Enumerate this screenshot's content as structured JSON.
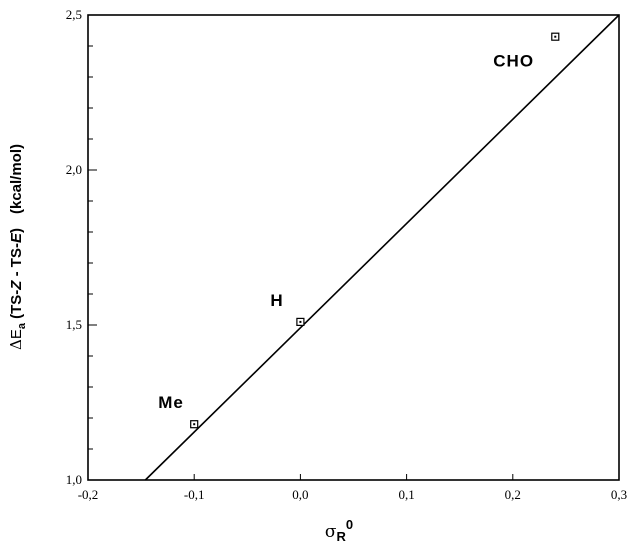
{
  "chart_data": {
    "type": "scatter",
    "title": "",
    "xlabel": {
      "main": "σ",
      "sub": "R",
      "sup": "0"
    },
    "ylabel": {
      "delta": "Δ",
      "e": "E",
      "sub": "a",
      "p1": " (TS-",
      "z": "Z",
      "p2": " - TS-",
      "e2": "E",
      "p3": ")",
      "unit": "(kcal/mol)"
    },
    "xlim": [
      -0.2,
      0.3
    ],
    "ylim": [
      1.0,
      2.5
    ],
    "xticks": [
      {
        "value": -0.2,
        "label": "-0,2"
      },
      {
        "value": -0.1,
        "label": "-0,1"
      },
      {
        "value": 0.0,
        "label": "0,0"
      },
      {
        "value": 0.1,
        "label": "0,1"
      },
      {
        "value": 0.2,
        "label": "0,2"
      },
      {
        "value": 0.3,
        "label": "0,3"
      }
    ],
    "yticks": [
      {
        "value": 1.0,
        "label": "1,0"
      },
      {
        "value": 1.5,
        "label": "1,5"
      },
      {
        "value": 2.0,
        "label": "2,0"
      },
      {
        "value": 2.5,
        "label": "2,5"
      }
    ],
    "y_minor_step": 0.1,
    "grid": false,
    "points": [
      {
        "label": "Me",
        "x": -0.1,
        "y": 1.18
      },
      {
        "label": "H",
        "x": 0.0,
        "y": 1.51
      },
      {
        "label": "CHO",
        "x": 0.24,
        "y": 2.43
      }
    ],
    "fit_line": {
      "x": [
        -0.146,
        0.3
      ],
      "y": [
        1.0,
        2.5
      ]
    }
  }
}
